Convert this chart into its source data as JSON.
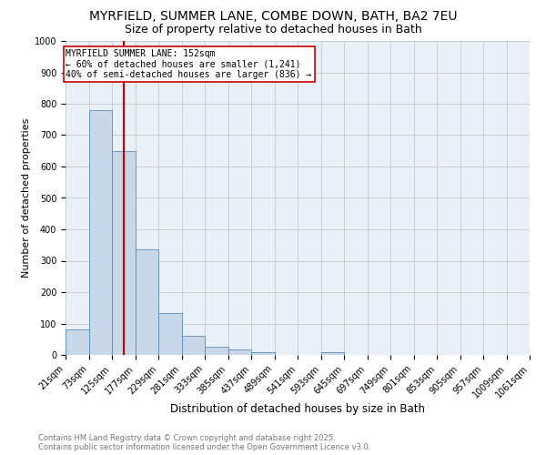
{
  "title1": "MYRFIELD, SUMMER LANE, COMBE DOWN, BATH, BA2 7EU",
  "title2": "Size of property relative to detached houses in Bath",
  "xlabel": "Distribution of detached houses by size in Bath",
  "ylabel": "Number of detached properties",
  "bar_values": [
    82,
    780,
    648,
    335,
    133,
    60,
    25,
    18,
    10,
    0,
    0,
    10,
    0,
    0,
    0,
    0,
    0,
    0,
    0,
    0
  ],
  "bin_edges": [
    21,
    73,
    125,
    177,
    229,
    281,
    333,
    385,
    437,
    489,
    541,
    593,
    645,
    697,
    749,
    801,
    853,
    905,
    957,
    1009,
    1061
  ],
  "tick_labels": [
    "21sqm",
    "73sqm",
    "125sqm",
    "177sqm",
    "229sqm",
    "281sqm",
    "333sqm",
    "385sqm",
    "437sqm",
    "489sqm",
    "541sqm",
    "593sqm",
    "645sqm",
    "697sqm",
    "749sqm",
    "801sqm",
    "853sqm",
    "905sqm",
    "957sqm",
    "1009sqm",
    "1061sqm"
  ],
  "bar_color": "#c8d8e8",
  "bar_edge_color": "#5b8db8",
  "red_line_x": 152,
  "annotation_title": "MYRFIELD SUMMER LANE: 152sqm",
  "annotation_line1": "← 60% of detached houses are smaller (1,241)",
  "annotation_line2": "40% of semi-detached houses are larger (836) →",
  "annotation_box_color": "#ffffff",
  "annotation_box_edge": "#cc0000",
  "red_line_color": "#cc0000",
  "ylim": [
    0,
    1000
  ],
  "yticks": [
    0,
    100,
    200,
    300,
    400,
    500,
    600,
    700,
    800,
    900,
    1000
  ],
  "grid_color": "#c8c8c8",
  "background_color": "#eaf0f8",
  "footer_text": "Contains HM Land Registry data © Crown copyright and database right 2025.\nContains public sector information licensed under the Open Government Licence v3.0.",
  "title1_fontsize": 10,
  "title2_fontsize": 9,
  "xlabel_fontsize": 8.5,
  "ylabel_fontsize": 8,
  "tick_fontsize": 7,
  "annotation_fontsize": 7,
  "footer_fontsize": 6
}
